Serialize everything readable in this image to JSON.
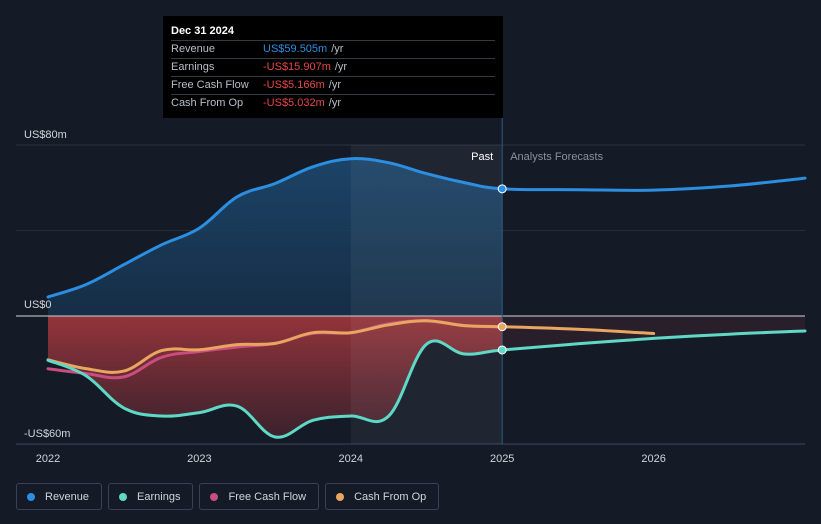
{
  "tooltip": {
    "date": "Dec 31 2024",
    "rows": [
      {
        "label": "Revenue",
        "value": "US$59.505m",
        "unit": "/yr"
      },
      {
        "label": "Earnings",
        "value": "-US$15.907m",
        "unit": "/yr"
      },
      {
        "label": "Free Cash Flow",
        "value": "-US$5.166m",
        "unit": "/yr"
      },
      {
        "label": "Cash From Op",
        "value": "-US$5.032m",
        "unit": "/yr"
      }
    ]
  },
  "labels": {
    "past": "Past",
    "forecast": "Analysts Forecasts"
  },
  "colors": {
    "revenue": "#2b8ee0",
    "earnings": "#5fd8c6",
    "free_cash_flow": "#c94d80",
    "cash_from_op": "#e8a660",
    "background": "#151b26",
    "negative_value": "#e54848"
  },
  "legend": [
    {
      "name": "Revenue",
      "color": "#2b8ee0"
    },
    {
      "name": "Earnings",
      "color": "#5fd8c6"
    },
    {
      "name": "Free Cash Flow",
      "color": "#c94d80"
    },
    {
      "name": "Cash From Op",
      "color": "#e8a660"
    }
  ],
  "chart_data": {
    "type": "line",
    "title": "",
    "xlabel": "",
    "ylabel": "",
    "ylim": [
      -60,
      80
    ],
    "y_ticks": [
      {
        "value": 80,
        "label": "US$80m"
      },
      {
        "value": 0,
        "label": "US$0"
      },
      {
        "value": -60,
        "label": "-US$60m"
      }
    ],
    "x_ticks": [
      {
        "value": 2022.0,
        "label": "2022"
      },
      {
        "value": 2023.0,
        "label": "2023"
      },
      {
        "value": 2024.0,
        "label": "2024"
      },
      {
        "value": 2025.0,
        "label": "2025"
      },
      {
        "value": 2026.0,
        "label": "2026"
      }
    ],
    "xlim": [
      2022.0,
      2027.0
    ],
    "past_end": 2025.0,
    "highlight_start": 2024.0,
    "series": [
      {
        "name": "Revenue",
        "key": "revenue",
        "x": [
          2022.0,
          2022.25,
          2022.5,
          2022.75,
          2023.0,
          2023.25,
          2023.5,
          2023.75,
          2024.0,
          2024.25,
          2024.5,
          2024.75,
          2025.0,
          2025.5,
          2026.0,
          2026.5,
          2027.0
        ],
        "y": [
          8.9,
          14.7,
          24.0,
          33.3,
          41.1,
          55.8,
          62.0,
          69.8,
          73.6,
          71.7,
          66.6,
          62.4,
          59.5,
          59.1,
          58.9,
          60.8,
          64.5
        ]
      },
      {
        "name": "Earnings",
        "key": "earnings",
        "x": [
          2022.0,
          2022.25,
          2022.5,
          2022.75,
          2023.0,
          2023.25,
          2023.5,
          2023.75,
          2024.0,
          2024.25,
          2024.5,
          2024.75,
          2025.0,
          2025.5,
          2026.0,
          2026.5,
          2027.0
        ],
        "y": [
          -20.7,
          -27.9,
          -43.0,
          -46.8,
          -45.2,
          -42.2,
          -56.6,
          -48.8,
          -46.8,
          -46.8,
          -13.2,
          -17.8,
          -15.9,
          -13.0,
          -10.5,
          -8.5,
          -7.0
        ]
      },
      {
        "name": "Free Cash Flow",
        "key": "free_cash_flow",
        "x": [
          2022.0,
          2022.25,
          2022.5,
          2022.75,
          2023.0,
          2023.25,
          2023.5,
          2023.75,
          2024.0,
          2024.25,
          2024.5,
          2024.75,
          2025.0
        ],
        "y": [
          -24.7,
          -26.9,
          -28.5,
          -19.3,
          -16.6,
          -14.5,
          -12.8,
          -8.1,
          -7.8,
          -3.6,
          -2.2,
          -4.5,
          -5.2
        ]
      },
      {
        "name": "Cash From Op",
        "key": "cash_from_op",
        "x": [
          2022.0,
          2022.25,
          2022.5,
          2022.75,
          2023.0,
          2023.25,
          2023.5,
          2023.75,
          2024.0,
          2024.25,
          2024.5,
          2024.75,
          2025.0,
          2025.5,
          2026.0
        ],
        "y": [
          -20.5,
          -24.6,
          -25.8,
          -16.2,
          -15.8,
          -13.4,
          -12.8,
          -7.8,
          -7.8,
          -4.1,
          -2.2,
          -4.5,
          -5.0,
          -6.2,
          -8.2
        ]
      }
    ]
  }
}
